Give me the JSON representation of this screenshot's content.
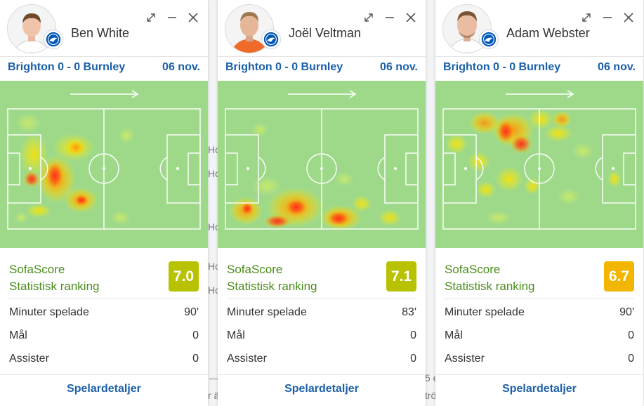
{
  "background": {
    "fragments": [
      "Ho",
      "Ho",
      "Ho",
      "Ho",
      "Ho",
      "—",
      "r ä",
      "5 e",
      "trö"
    ]
  },
  "common": {
    "rating_title_line1": "SofaScore",
    "rating_title_line2": "Statistisk ranking",
    "minutes_label": "Minuter spelade",
    "goals_label": "Mål",
    "assists_label": "Assister",
    "details_label": "Spelardetaljer"
  },
  "cards": [
    {
      "name": "Ben White",
      "match": "Brighton 0 - 0 Burnley",
      "date": "06 nov.",
      "rating": "7.0",
      "rating_color": "#b8c200",
      "minutes": "90'",
      "goals": "0",
      "assists": "0"
    },
    {
      "name": "Joël Veltman",
      "match": "Brighton 0 - 0 Burnley",
      "date": "06 nov.",
      "rating": "7.1",
      "rating_color": "#b8c200",
      "minutes": "83'",
      "goals": "0",
      "assists": "0"
    },
    {
      "name": "Adam Webster",
      "match": "Brighton 0 - 0 Burnley",
      "date": "06 nov.",
      "rating": "6.7",
      "rating_color": "#f2b600",
      "minutes": "90'",
      "goals": "0",
      "assists": "0"
    }
  ],
  "colors": {
    "pitch": "#9ed98a",
    "accent_blue": "#1a5fa8",
    "accent_green": "#4a8e1a"
  },
  "icons": [
    "expand-icon",
    "minimize-icon",
    "close-icon",
    "brighton-crest-icon",
    "direction-arrow-icon"
  ]
}
